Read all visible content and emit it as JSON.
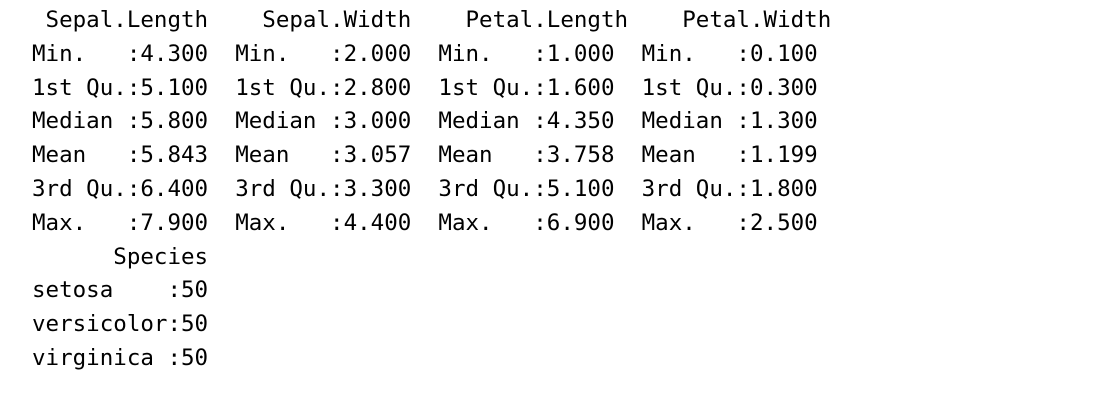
{
  "summary": {
    "block1": {
      "headers": [
        " Sepal.Length",
        "  Sepal.Width",
        "  Petal.Length",
        "  Petal.Width"
      ],
      "rows": [
        [
          "Min.   :4.300",
          "Min.   :2.000",
          "Min.   :1.000",
          "Min.   :0.100"
        ],
        [
          "1st Qu.:5.100",
          "1st Qu.:2.800",
          "1st Qu.:1.600",
          "1st Qu.:0.300"
        ],
        [
          "Median :5.800",
          "Median :3.000",
          "Median :4.350",
          "Median :1.300"
        ],
        [
          "Mean   :5.843",
          "Mean   :3.057",
          "Mean   :3.758",
          "Mean   :1.199"
        ],
        [
          "3rd Qu.:6.400",
          "3rd Qu.:3.300",
          "3rd Qu.:5.100",
          "3rd Qu.:1.800"
        ],
        [
          "Max.   :7.900",
          "Max.   :4.400",
          "Max.   :6.900",
          "Max.   :2.500"
        ]
      ]
    },
    "block2": {
      "header": "      Species",
      "rows": [
        "setosa    :50",
        "versicolor:50",
        "virginica :50"
      ]
    }
  }
}
